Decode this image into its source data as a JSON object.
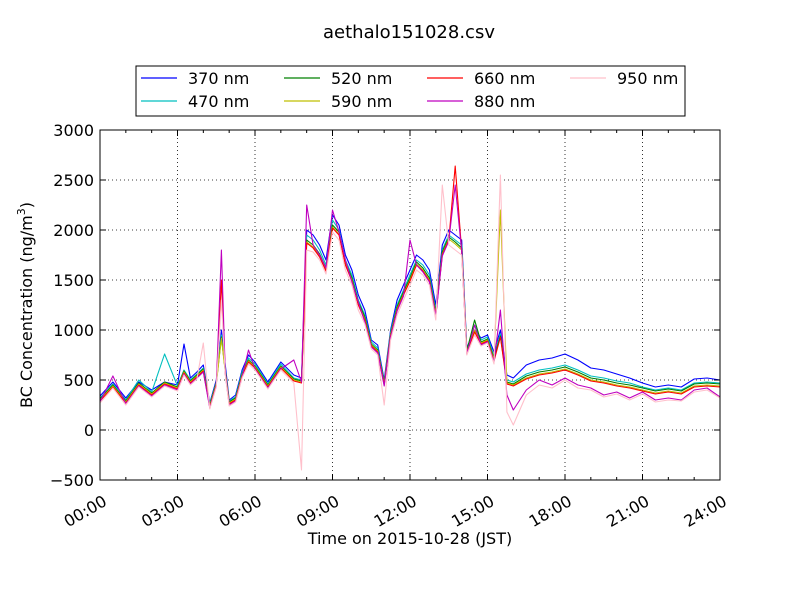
{
  "chart_data": {
    "type": "line",
    "title": "aethalo151028.csv",
    "xlabel": "Time on 2015-10-28 (JST)",
    "ylabel": "BC Concentration (ng/m",
    "ylabel_superscript": "3",
    "ylabel_suffix": ")",
    "xlim": [
      0,
      24
    ],
    "ylim": [
      -500,
      3000
    ],
    "x_ticks": [
      0,
      3,
      6,
      9,
      12,
      15,
      18,
      21,
      24
    ],
    "x_tick_labels": [
      "00:00",
      "03:00",
      "06:00",
      "09:00",
      "12:00",
      "15:00",
      "18:00",
      "21:00",
      "24:00"
    ],
    "y_ticks": [
      -500,
      0,
      500,
      1000,
      1500,
      2000,
      2500,
      3000
    ],
    "y_tick_labels": [
      "−500",
      "0",
      "500",
      "1000",
      "1500",
      "2000",
      "2500",
      "3000"
    ],
    "grid": true,
    "legend_position": "top",
    "legend_columns": 4,
    "x": [
      0,
      0.5,
      1,
      1.5,
      2,
      2.5,
      3,
      3.25,
      3.5,
      3.75,
      4,
      4.25,
      4.5,
      4.7,
      4.85,
      5,
      5.25,
      5.5,
      5.75,
      6,
      6.5,
      7,
      7.5,
      7.8,
      8,
      8.25,
      8.5,
      8.75,
      9,
      9.25,
      9.5,
      9.75,
      10,
      10.25,
      10.5,
      10.75,
      11,
      11.25,
      11.5,
      11.75,
      12,
      12.25,
      12.5,
      12.75,
      13,
      13.25,
      13.5,
      13.75,
      14,
      14.2,
      14.5,
      14.75,
      15,
      15.25,
      15.5,
      15.75,
      16,
      16.5,
      17,
      17.5,
      18,
      18.5,
      19,
      19.5,
      20,
      20.5,
      21,
      21.5,
      22,
      22.5,
      23,
      23.5,
      24
    ],
    "series": [
      {
        "name": "370 nm",
        "color": "#0000ff",
        "values": [
          340,
          480,
          320,
          480,
          400,
          480,
          450,
          860,
          520,
          580,
          650,
          270,
          500,
          1000,
          650,
          300,
          350,
          600,
          750,
          680,
          480,
          680,
          550,
          520,
          2000,
          1950,
          1850,
          1700,
          2150,
          2050,
          1750,
          1600,
          1350,
          1200,
          900,
          850,
          500,
          1000,
          1300,
          1450,
          1600,
          1750,
          1700,
          1600,
          1250,
          1850,
          2000,
          1950,
          1900,
          820,
          1000,
          920,
          950,
          780,
          1000,
          550,
          520,
          650,
          700,
          720,
          760,
          700,
          620,
          600,
          560,
          520,
          470,
          430,
          450,
          430,
          510,
          520,
          500
        ]
      },
      {
        "name": "470 nm",
        "color": "#00bfbf",
        "values": [
          320,
          460,
          300,
          500,
          380,
          760,
          440,
          600,
          500,
          560,
          620,
          260,
          480,
          950,
          600,
          290,
          330,
          580,
          720,
          660,
          460,
          660,
          520,
          500,
          1950,
          1900,
          1800,
          1650,
          2100,
          2000,
          1700,
          1550,
          1300,
          1150,
          880,
          820,
          480,
          980,
          1250,
          1400,
          1550,
          1700,
          1650,
          1550,
          1200,
          1800,
          1950,
          1900,
          1850,
          800,
          1050,
          900,
          930,
          740,
          960,
          500,
          480,
          560,
          600,
          620,
          650,
          600,
          540,
          520,
          490,
          470,
          430,
          400,
          420,
          400,
          470,
          480,
          470
        ]
      },
      {
        "name": "520 nm",
        "color": "#008000",
        "values": [
          310,
          450,
          290,
          470,
          370,
          480,
          430,
          590,
          490,
          550,
          610,
          250,
          470,
          930,
          590,
          280,
          320,
          560,
          700,
          640,
          450,
          640,
          510,
          490,
          1900,
          1850,
          1760,
          1620,
          2050,
          1980,
          1680,
          1520,
          1280,
          1130,
          860,
          800,
          470,
          960,
          1230,
          1380,
          1520,
          1680,
          1620,
          1520,
          1180,
          1780,
          1930,
          1880,
          1820,
          790,
          1100,
          880,
          910,
          720,
          940,
          480,
          460,
          540,
          580,
          600,
          630,
          580,
          520,
          500,
          470,
          450,
          420,
          390,
          410,
          390,
          460,
          470,
          460
        ]
      },
      {
        "name": "590 nm",
        "color": "#bfbf00",
        "values": [
          300,
          440,
          280,
          460,
          360,
          470,
          420,
          580,
          480,
          540,
          600,
          240,
          460,
          920,
          580,
          270,
          310,
          550,
          690,
          630,
          440,
          630,
          500,
          480,
          1880,
          1830,
          1740,
          1600,
          2030,
          1960,
          1660,
          1500,
          1260,
          1110,
          850,
          790,
          460,
          950,
          1210,
          1360,
          1500,
          1660,
          1600,
          1500,
          1160,
          1760,
          1910,
          1860,
          1800,
          780,
          1000,
          870,
          900,
          700,
          2200,
          470,
          450,
          520,
          560,
          580,
          610,
          560,
          500,
          480,
          450,
          430,
          400,
          370,
          390,
          370,
          440,
          450,
          440
        ]
      },
      {
        "name": "660 nm",
        "color": "#ff0000",
        "values": [
          290,
          430,
          270,
          450,
          350,
          460,
          410,
          570,
          470,
          530,
          590,
          230,
          450,
          1500,
          570,
          260,
          300,
          540,
          680,
          620,
          430,
          620,
          490,
          470,
          1870,
          1820,
          1730,
          1590,
          2020,
          1950,
          1650,
          1490,
          1250,
          1100,
          840,
          780,
          450,
          940,
          1200,
          1350,
          1490,
          1650,
          1590,
          1490,
          1150,
          1750,
          1900,
          2640,
          1790,
          770,
          980,
          860,
          890,
          690,
          930,
          460,
          440,
          510,
          550,
          570,
          600,
          550,
          490,
          470,
          440,
          420,
          390,
          360,
          380,
          360,
          430,
          440,
          430
        ]
      },
      {
        "name": "880 nm",
        "color": "#bf00bf",
        "values": [
          280,
          540,
          260,
          440,
          340,
          450,
          400,
          560,
          460,
          520,
          580,
          220,
          440,
          1800,
          560,
          250,
          290,
          530,
          800,
          610,
          420,
          610,
          700,
          480,
          2250,
          1850,
          1750,
          1620,
          2200,
          1980,
          1700,
          1480,
          1280,
          1080,
          830,
          770,
          440,
          930,
          1190,
          1340,
          1900,
          1650,
          1580,
          1480,
          1140,
          1740,
          1890,
          2450,
          1780,
          760,
          1050,
          850,
          880,
          680,
          1200,
          350,
          200,
          400,
          500,
          450,
          520,
          450,
          420,
          350,
          380,
          320,
          380,
          300,
          320,
          300,
          400,
          420,
          330
        ]
      },
      {
        "name": "950 nm",
        "color": "#ffc0cb",
        "values": [
          270,
          420,
          250,
          430,
          330,
          440,
          390,
          550,
          450,
          510,
          870,
          210,
          430,
          1300,
          550,
          240,
          280,
          520,
          660,
          600,
          410,
          600,
          470,
          -400,
          1800,
          1780,
          1700,
          1560,
          1980,
          1900,
          1600,
          1450,
          1200,
          1060,
          810,
          750,
          250,
          900,
          1150,
          1300,
          1450,
          1600,
          1550,
          1450,
          1100,
          2450,
          1850,
          1800,
          1750,
          750,
          950,
          840,
          870,
          660,
          2550,
          180,
          50,
          350,
          450,
          420,
          500,
          420,
          400,
          330,
          360,
          300,
          360,
          280,
          300,
          290,
          380,
          400,
          320
        ]
      }
    ]
  }
}
